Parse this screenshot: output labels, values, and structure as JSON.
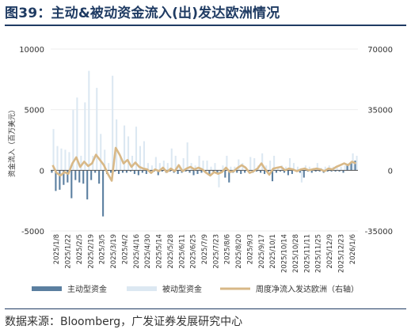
{
  "figure": {
    "title": "图39：主动&被动资金流入(出)发达欧洲情况",
    "source": "数据来源：Bloomberg，广发证券发展研究中心"
  },
  "chart_data": {
    "type": "bar+line",
    "ylabel": "资金流入（百万美元）",
    "left_axis": {
      "min": -5000,
      "max": 10000,
      "ticks": [
        10000,
        5000,
        0,
        -5000
      ]
    },
    "right_axis": {
      "min": -35000,
      "max": 70000,
      "ticks": [
        70000,
        35000,
        0,
        -35000
      ]
    },
    "x_tick_labels": [
      "2025/1/8",
      "2025/1/22",
      "2025/2/5",
      "2025/2/19",
      "2025/3/5",
      "2025/3/19",
      "2025/4/2",
      "2025/4/16",
      "2025/4/30",
      "2025/5/14",
      "2025/5/28",
      "2025/6/11",
      "2025/6/25",
      "2025/7/9",
      "2025/7/23",
      "2025/8/6",
      "2025/8/20",
      "2025/9/3",
      "2025/9/17",
      "2025/10/1",
      "2025/10/14",
      "2025/10/28",
      "2025/11/11",
      "2025/11/25",
      "2025/12/9",
      "2025/12/23",
      "2026/1/6"
    ],
    "series": [
      {
        "name": "主动型资金",
        "kind": "bar",
        "axis": "left",
        "color": "#5b7fa0",
        "values": [
          -200,
          -1700,
          -1600,
          -1200,
          -1000,
          -2300,
          -800,
          -1000,
          -1100,
          -2400,
          -800,
          -200,
          -1100,
          -3800,
          -300,
          -200,
          -100,
          -300,
          -200,
          -200,
          -100,
          -300,
          -400,
          -200,
          -300,
          -200,
          -100,
          -400,
          -100,
          -200,
          -100,
          -200,
          -300,
          -200,
          -100,
          -200,
          -400,
          -300,
          -200,
          -200,
          -400,
          -100,
          -200,
          -100,
          -600,
          -1000,
          -200,
          -200,
          -300,
          -200,
          -100,
          -200,
          -100,
          -200,
          -300,
          -100,
          -900,
          -200,
          -100,
          -200,
          -400,
          -300,
          -100,
          -200,
          -600,
          -100,
          -200,
          -100,
          -100,
          -200,
          -100,
          -100,
          -100,
          -100,
          -200,
          400,
          700,
          800
        ]
      },
      {
        "name": "被动型资金",
        "kind": "bar",
        "axis": "left",
        "color": "#dce8f2",
        "values": [
          3400,
          2000,
          1800,
          1700,
          1500,
          5000,
          6000,
          1200,
          5600,
          8200,
          1200,
          6800,
          3000,
          1700,
          600,
          7800,
          4200,
          1200,
          3700,
          2800,
          1200,
          3600,
          2000,
          2400,
          600,
          400,
          1100,
          600,
          800,
          600,
          1800,
          1200,
          400,
          1000,
          2300,
          600,
          400,
          1200,
          800,
          800,
          300,
          600,
          -1400,
          400,
          1200,
          300,
          300,
          900,
          600,
          200,
          1100,
          1000,
          400,
          1400,
          400,
          800,
          1200,
          200,
          400,
          300,
          1000,
          600,
          300,
          -1000,
          400,
          300,
          200,
          600,
          200,
          300,
          400,
          300,
          200,
          300,
          400,
          600,
          1400,
          1200
        ]
      },
      {
        "name": "周度净流入发达欧洲（右轴）",
        "kind": "line",
        "axis": "right",
        "color": "#d8b887",
        "values": [
          3000,
          -1500,
          -3000,
          -1000,
          -2000,
          4000,
          7500,
          2000,
          5000,
          2500,
          4000,
          9000,
          6000,
          3000,
          -2000,
          -6000,
          13000,
          9000,
          4000,
          6000,
          2000,
          4500,
          2000,
          1000,
          500,
          -1500,
          500,
          -500,
          1500,
          -1000,
          1000,
          -500,
          3000,
          -500,
          1000,
          2000,
          500,
          1500,
          500,
          -1500,
          -3000,
          -1000,
          -2000,
          -1000,
          1500,
          -1000,
          -500,
          1500,
          3000,
          1500,
          -1500,
          -500,
          1000,
          4000,
          500,
          -2500,
          1000,
          1500,
          2000,
          0,
          1000,
          500,
          -500,
          500,
          1000,
          0,
          500,
          1000,
          500,
          -500,
          1000,
          500,
          2000,
          3000,
          4000,
          3000,
          5000,
          4000
        ]
      }
    ]
  }
}
